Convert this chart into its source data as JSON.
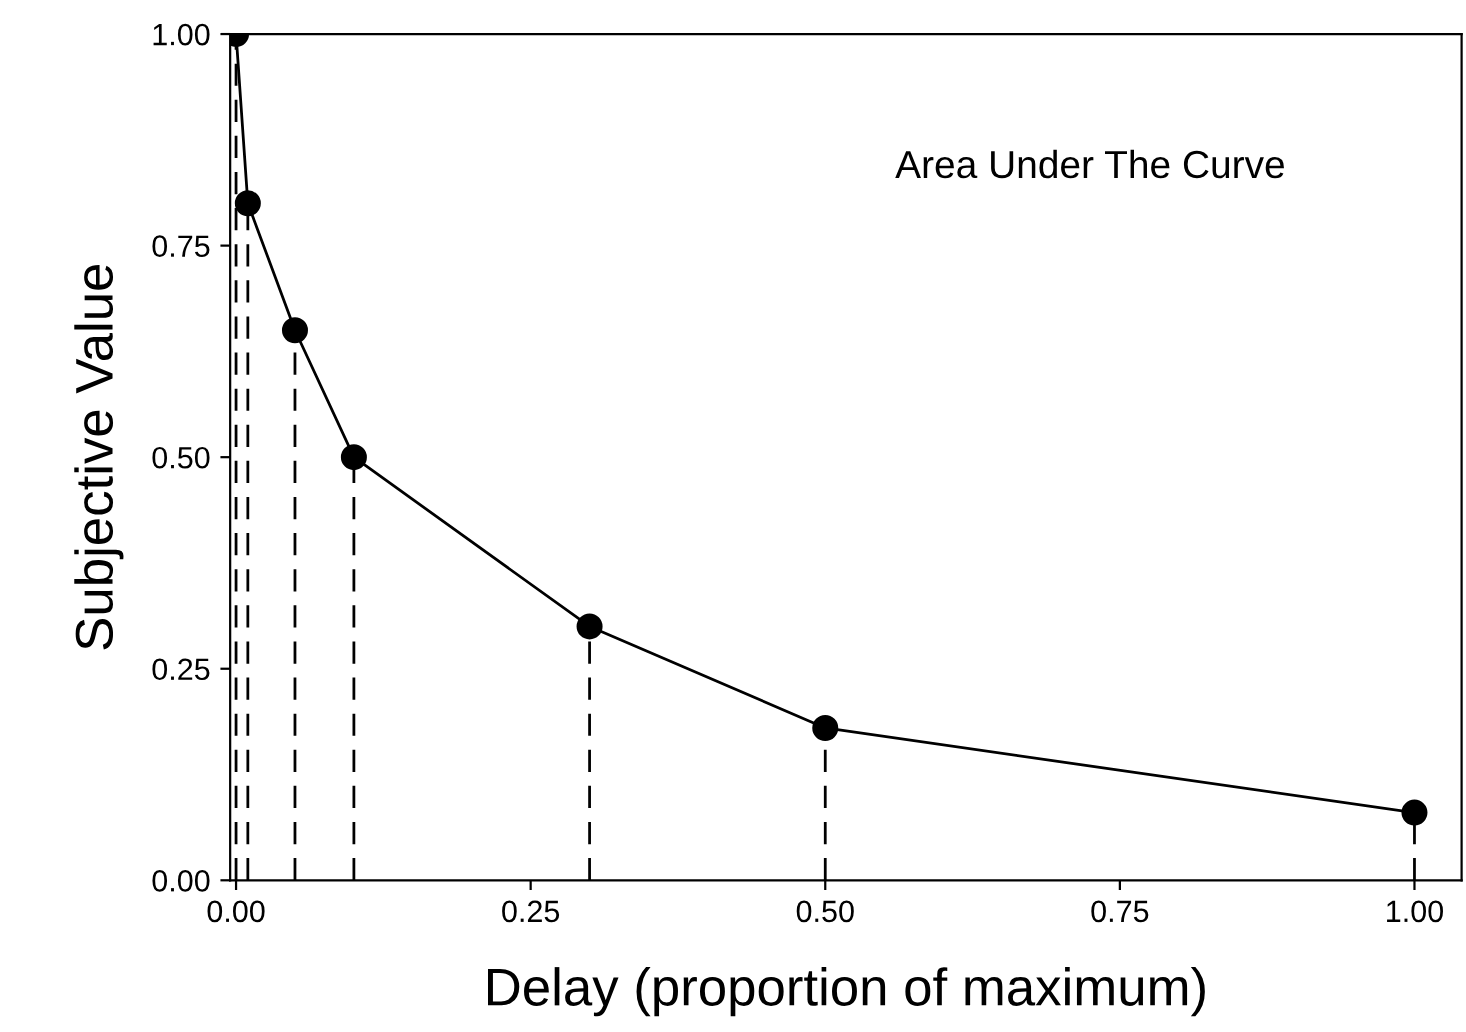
{
  "chart_data": {
    "type": "line",
    "xlabel": "Delay (proportion of maximum)",
    "ylabel": "Subjective Value",
    "annotations": [
      "Area Under The Curve"
    ],
    "x": [
      0,
      0.01,
      0.05,
      0.1,
      0.3,
      0.5,
      1.0
    ],
    "series": [
      {
        "type": "lollipop",
        "color": "#000000",
        "values": [
          1.0,
          0.8,
          0.65,
          0.5,
          0.3,
          0.18,
          0.08
        ],
        "line_style": "dashed",
        "marker": "circle"
      },
      {
        "color": "#000000",
        "values": [
          1.0,
          0.8,
          0.65,
          0.5,
          0.3,
          0.18,
          0.08
        ]
      }
    ],
    "xlim": [
      -0.005,
      1.04
    ],
    "ylim": [
      0,
      1.0
    ],
    "xticks": [
      {
        "value": 0,
        "label": "0.00"
      },
      {
        "value": 0.25,
        "label": "0.25"
      },
      {
        "value": 0.5,
        "label": "0.50"
      },
      {
        "value": 0.75,
        "label": "0.75"
      },
      {
        "value": 1.0,
        "label": "1.00"
      }
    ],
    "yticks": [
      {
        "value": 0,
        "label": "0.00"
      },
      {
        "value": 0.25,
        "label": "0.25"
      },
      {
        "value": 0.5,
        "label": "0.50"
      },
      {
        "value": 0.75,
        "label": "0.75"
      },
      {
        "value": 1.0,
        "label": "1.00"
      }
    ],
    "legend": false
  }
}
